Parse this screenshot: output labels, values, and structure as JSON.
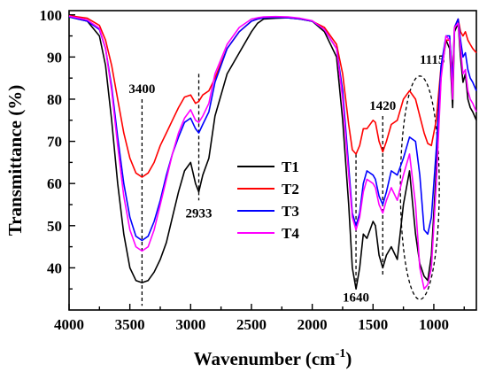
{
  "chart_data": {
    "type": "line",
    "xlabel": "Wavenumber (cm",
    "xlabel_sup": "-1",
    "xlabel_end": ")",
    "ylabel": "Transmittance (%)",
    "xlim": [
      4000,
      650
    ],
    "ylim": [
      30,
      101
    ],
    "x_reversed": true,
    "x_ticks": [
      4000,
      3500,
      3000,
      2500,
      2000,
      1500,
      1000
    ],
    "x_tick_labels": [
      "4000",
      "3500",
      "3000",
      "2500",
      "2000",
      "1500",
      "1000"
    ],
    "y_ticks": [
      40,
      50,
      60,
      70,
      80,
      90,
      100
    ],
    "y_tick_labels": [
      "40",
      "50",
      "60",
      "70",
      "80",
      "90",
      "100"
    ],
    "grid": false,
    "legend_position": "center",
    "series": [
      {
        "name": "T1",
        "color": "#000000",
        "points": [
          [
            4000,
            99.5
          ],
          [
            3850,
            98.5
          ],
          [
            3750,
            95
          ],
          [
            3700,
            88
          ],
          [
            3650,
            75
          ],
          [
            3600,
            60
          ],
          [
            3550,
            48
          ],
          [
            3500,
            40
          ],
          [
            3450,
            37
          ],
          [
            3400,
            36.5
          ],
          [
            3350,
            37
          ],
          [
            3300,
            39
          ],
          [
            3250,
            42
          ],
          [
            3200,
            46
          ],
          [
            3150,
            52
          ],
          [
            3100,
            58
          ],
          [
            3050,
            63
          ],
          [
            3000,
            65
          ],
          [
            2960,
            60
          ],
          [
            2933,
            58
          ],
          [
            2900,
            62
          ],
          [
            2850,
            66
          ],
          [
            2800,
            76
          ],
          [
            2700,
            86
          ],
          [
            2600,
            91
          ],
          [
            2500,
            96
          ],
          [
            2450,
            98
          ],
          [
            2400,
            99
          ],
          [
            2300,
            99.2
          ],
          [
            2200,
            99.3
          ],
          [
            2100,
            99
          ],
          [
            2000,
            98.5
          ],
          [
            1900,
            96
          ],
          [
            1800,
            90
          ],
          [
            1750,
            75
          ],
          [
            1700,
            55
          ],
          [
            1670,
            40
          ],
          [
            1640,
            35
          ],
          [
            1610,
            40
          ],
          [
            1580,
            48
          ],
          [
            1550,
            47
          ],
          [
            1500,
            51
          ],
          [
            1480,
            50
          ],
          [
            1450,
            43
          ],
          [
            1420,
            40
          ],
          [
            1390,
            43
          ],
          [
            1350,
            45
          ],
          [
            1300,
            42
          ],
          [
            1250,
            55
          ],
          [
            1200,
            63
          ],
          [
            1150,
            48
          ],
          [
            1115,
            41
          ],
          [
            1080,
            38
          ],
          [
            1050,
            37
          ],
          [
            1020,
            43
          ],
          [
            980,
            63
          ],
          [
            940,
            86
          ],
          [
            900,
            94
          ],
          [
            870,
            92
          ],
          [
            845,
            78
          ],
          [
            830,
            96
          ],
          [
            800,
            98
          ],
          [
            780,
            90
          ],
          [
            760,
            84
          ],
          [
            740,
            86
          ],
          [
            720,
            80
          ],
          [
            700,
            78
          ],
          [
            680,
            77
          ],
          [
            650,
            75
          ]
        ]
      },
      {
        "name": "T2",
        "color": "#ff0000",
        "points": [
          [
            4000,
            99.8
          ],
          [
            3850,
            99.2
          ],
          [
            3750,
            97.5
          ],
          [
            3700,
            94
          ],
          [
            3650,
            88
          ],
          [
            3600,
            80
          ],
          [
            3550,
            72
          ],
          [
            3500,
            66
          ],
          [
            3450,
            62.5
          ],
          [
            3400,
            61.5
          ],
          [
            3350,
            62.5
          ],
          [
            3300,
            65
          ],
          [
            3250,
            69
          ],
          [
            3200,
            72
          ],
          [
            3150,
            75
          ],
          [
            3100,
            78
          ],
          [
            3050,
            80.5
          ],
          [
            3000,
            81
          ],
          [
            2960,
            79
          ],
          [
            2933,
            79.5
          ],
          [
            2900,
            81
          ],
          [
            2850,
            82
          ],
          [
            2800,
            85
          ],
          [
            2700,
            92
          ],
          [
            2600,
            96
          ],
          [
            2500,
            98.5
          ],
          [
            2450,
            99
          ],
          [
            2400,
            99.3
          ],
          [
            2300,
            99.4
          ],
          [
            2200,
            99.3
          ],
          [
            2100,
            99
          ],
          [
            2000,
            98.5
          ],
          [
            1900,
            97
          ],
          [
            1800,
            93
          ],
          [
            1750,
            86
          ],
          [
            1700,
            74
          ],
          [
            1670,
            68
          ],
          [
            1640,
            67
          ],
          [
            1610,
            69
          ],
          [
            1580,
            73
          ],
          [
            1550,
            73
          ],
          [
            1500,
            75
          ],
          [
            1480,
            74.5
          ],
          [
            1450,
            70
          ],
          [
            1420,
            67.5
          ],
          [
            1390,
            70
          ],
          [
            1350,
            74
          ],
          [
            1300,
            75
          ],
          [
            1250,
            80
          ],
          [
            1200,
            82
          ],
          [
            1150,
            80
          ],
          [
            1115,
            76
          ],
          [
            1080,
            72
          ],
          [
            1050,
            69.5
          ],
          [
            1020,
            69
          ],
          [
            980,
            75
          ],
          [
            940,
            88
          ],
          [
            900,
            94
          ],
          [
            870,
            94
          ],
          [
            845,
            86
          ],
          [
            830,
            97
          ],
          [
            800,
            99
          ],
          [
            780,
            96
          ],
          [
            760,
            95
          ],
          [
            740,
            96
          ],
          [
            720,
            94
          ],
          [
            700,
            93
          ],
          [
            680,
            92
          ],
          [
            650,
            91
          ]
        ]
      },
      {
        "name": "T3",
        "color": "#0000ff",
        "points": [
          [
            4000,
            99.5
          ],
          [
            3850,
            98.5
          ],
          [
            3750,
            96.5
          ],
          [
            3700,
            92
          ],
          [
            3650,
            83
          ],
          [
            3600,
            71
          ],
          [
            3550,
            60
          ],
          [
            3500,
            52
          ],
          [
            3450,
            47.5
          ],
          [
            3400,
            46.5
          ],
          [
            3350,
            47.5
          ],
          [
            3300,
            51
          ],
          [
            3250,
            56
          ],
          [
            3200,
            62
          ],
          [
            3150,
            67
          ],
          [
            3100,
            71
          ],
          [
            3050,
            74.5
          ],
          [
            3000,
            75.5
          ],
          [
            2960,
            73
          ],
          [
            2933,
            72
          ],
          [
            2900,
            74
          ],
          [
            2850,
            77
          ],
          [
            2800,
            84
          ],
          [
            2700,
            92
          ],
          [
            2600,
            96
          ],
          [
            2500,
            98.5
          ],
          [
            2450,
            99
          ],
          [
            2400,
            99.3
          ],
          [
            2300,
            99.4
          ],
          [
            2200,
            99.3
          ],
          [
            2100,
            99
          ],
          [
            2000,
            98.5
          ],
          [
            1900,
            96.5
          ],
          [
            1800,
            92
          ],
          [
            1750,
            82
          ],
          [
            1700,
            64
          ],
          [
            1670,
            53
          ],
          [
            1640,
            50
          ],
          [
            1610,
            53
          ],
          [
            1580,
            60
          ],
          [
            1550,
            63
          ],
          [
            1500,
            62
          ],
          [
            1480,
            61
          ],
          [
            1450,
            57
          ],
          [
            1420,
            55
          ],
          [
            1390,
            58
          ],
          [
            1350,
            63
          ],
          [
            1300,
            62
          ],
          [
            1250,
            66
          ],
          [
            1200,
            71
          ],
          [
            1150,
            70
          ],
          [
            1115,
            62
          ],
          [
            1080,
            49
          ],
          [
            1050,
            48
          ],
          [
            1020,
            52
          ],
          [
            980,
            68
          ],
          [
            940,
            88
          ],
          [
            900,
            95
          ],
          [
            870,
            95
          ],
          [
            845,
            84
          ],
          [
            830,
            97
          ],
          [
            800,
            99
          ],
          [
            780,
            94
          ],
          [
            760,
            90
          ],
          [
            740,
            91
          ],
          [
            720,
            87
          ],
          [
            700,
            85
          ],
          [
            680,
            84
          ],
          [
            650,
            82
          ]
        ]
      },
      {
        "name": "T4",
        "color": "#ff00ff",
        "points": [
          [
            4000,
            99.7
          ],
          [
            3850,
            98.8
          ],
          [
            3750,
            96.8
          ],
          [
            3700,
            92
          ],
          [
            3650,
            82
          ],
          [
            3600,
            69
          ],
          [
            3550,
            57
          ],
          [
            3500,
            49
          ],
          [
            3450,
            45
          ],
          [
            3400,
            44
          ],
          [
            3350,
            45
          ],
          [
            3300,
            49
          ],
          [
            3250,
            55
          ],
          [
            3200,
            61
          ],
          [
            3150,
            67
          ],
          [
            3100,
            72
          ],
          [
            3050,
            75.5
          ],
          [
            3000,
            77.5
          ],
          [
            2960,
            75
          ],
          [
            2933,
            74.5
          ],
          [
            2900,
            76
          ],
          [
            2850,
            79
          ],
          [
            2800,
            86
          ],
          [
            2700,
            93
          ],
          [
            2600,
            97
          ],
          [
            2500,
            99
          ],
          [
            2450,
            99.3
          ],
          [
            2400,
            99.5
          ],
          [
            2300,
            99.6
          ],
          [
            2200,
            99.5
          ],
          [
            2100,
            99.2
          ],
          [
            2000,
            98.6
          ],
          [
            1900,
            96.5
          ],
          [
            1800,
            92
          ],
          [
            1750,
            80
          ],
          [
            1700,
            62
          ],
          [
            1670,
            52
          ],
          [
            1640,
            49
          ],
          [
            1610,
            52
          ],
          [
            1580,
            58
          ],
          [
            1550,
            61
          ],
          [
            1500,
            60
          ],
          [
            1480,
            59
          ],
          [
            1450,
            55
          ],
          [
            1420,
            53
          ],
          [
            1390,
            56
          ],
          [
            1350,
            59
          ],
          [
            1300,
            56
          ],
          [
            1250,
            62
          ],
          [
            1200,
            67
          ],
          [
            1150,
            55
          ],
          [
            1115,
            40
          ],
          [
            1080,
            35
          ],
          [
            1050,
            36
          ],
          [
            1020,
            40
          ],
          [
            980,
            60
          ],
          [
            940,
            85
          ],
          [
            900,
            95
          ],
          [
            870,
            94
          ],
          [
            845,
            80
          ],
          [
            830,
            97
          ],
          [
            800,
            98
          ],
          [
            780,
            92
          ],
          [
            760,
            86
          ],
          [
            740,
            87
          ],
          [
            720,
            82
          ],
          [
            700,
            80
          ],
          [
            680,
            79
          ],
          [
            650,
            77
          ]
        ]
      }
    ],
    "annotations": [
      {
        "text": "3400",
        "x": 3400,
        "y": 81.5,
        "line_x": 3400,
        "line_y": [
          80,
          31
        ]
      },
      {
        "text": "2933",
        "x": 2933,
        "y": 52,
        "line_x": 2933,
        "line_y": [
          86,
          56
        ]
      },
      {
        "text": "1640",
        "x": 1640,
        "y": 32,
        "line_x": 1640,
        "line_y": [
          67,
          35
        ]
      },
      {
        "text": "1420",
        "x": 1420,
        "y": 77.5,
        "line_x": 1420,
        "line_y": [
          76,
          38
        ]
      }
    ],
    "ellipse": {
      "label": "1115",
      "cx": 1115,
      "cy": 59,
      "rx": 160,
      "ry": 26.5
    }
  }
}
